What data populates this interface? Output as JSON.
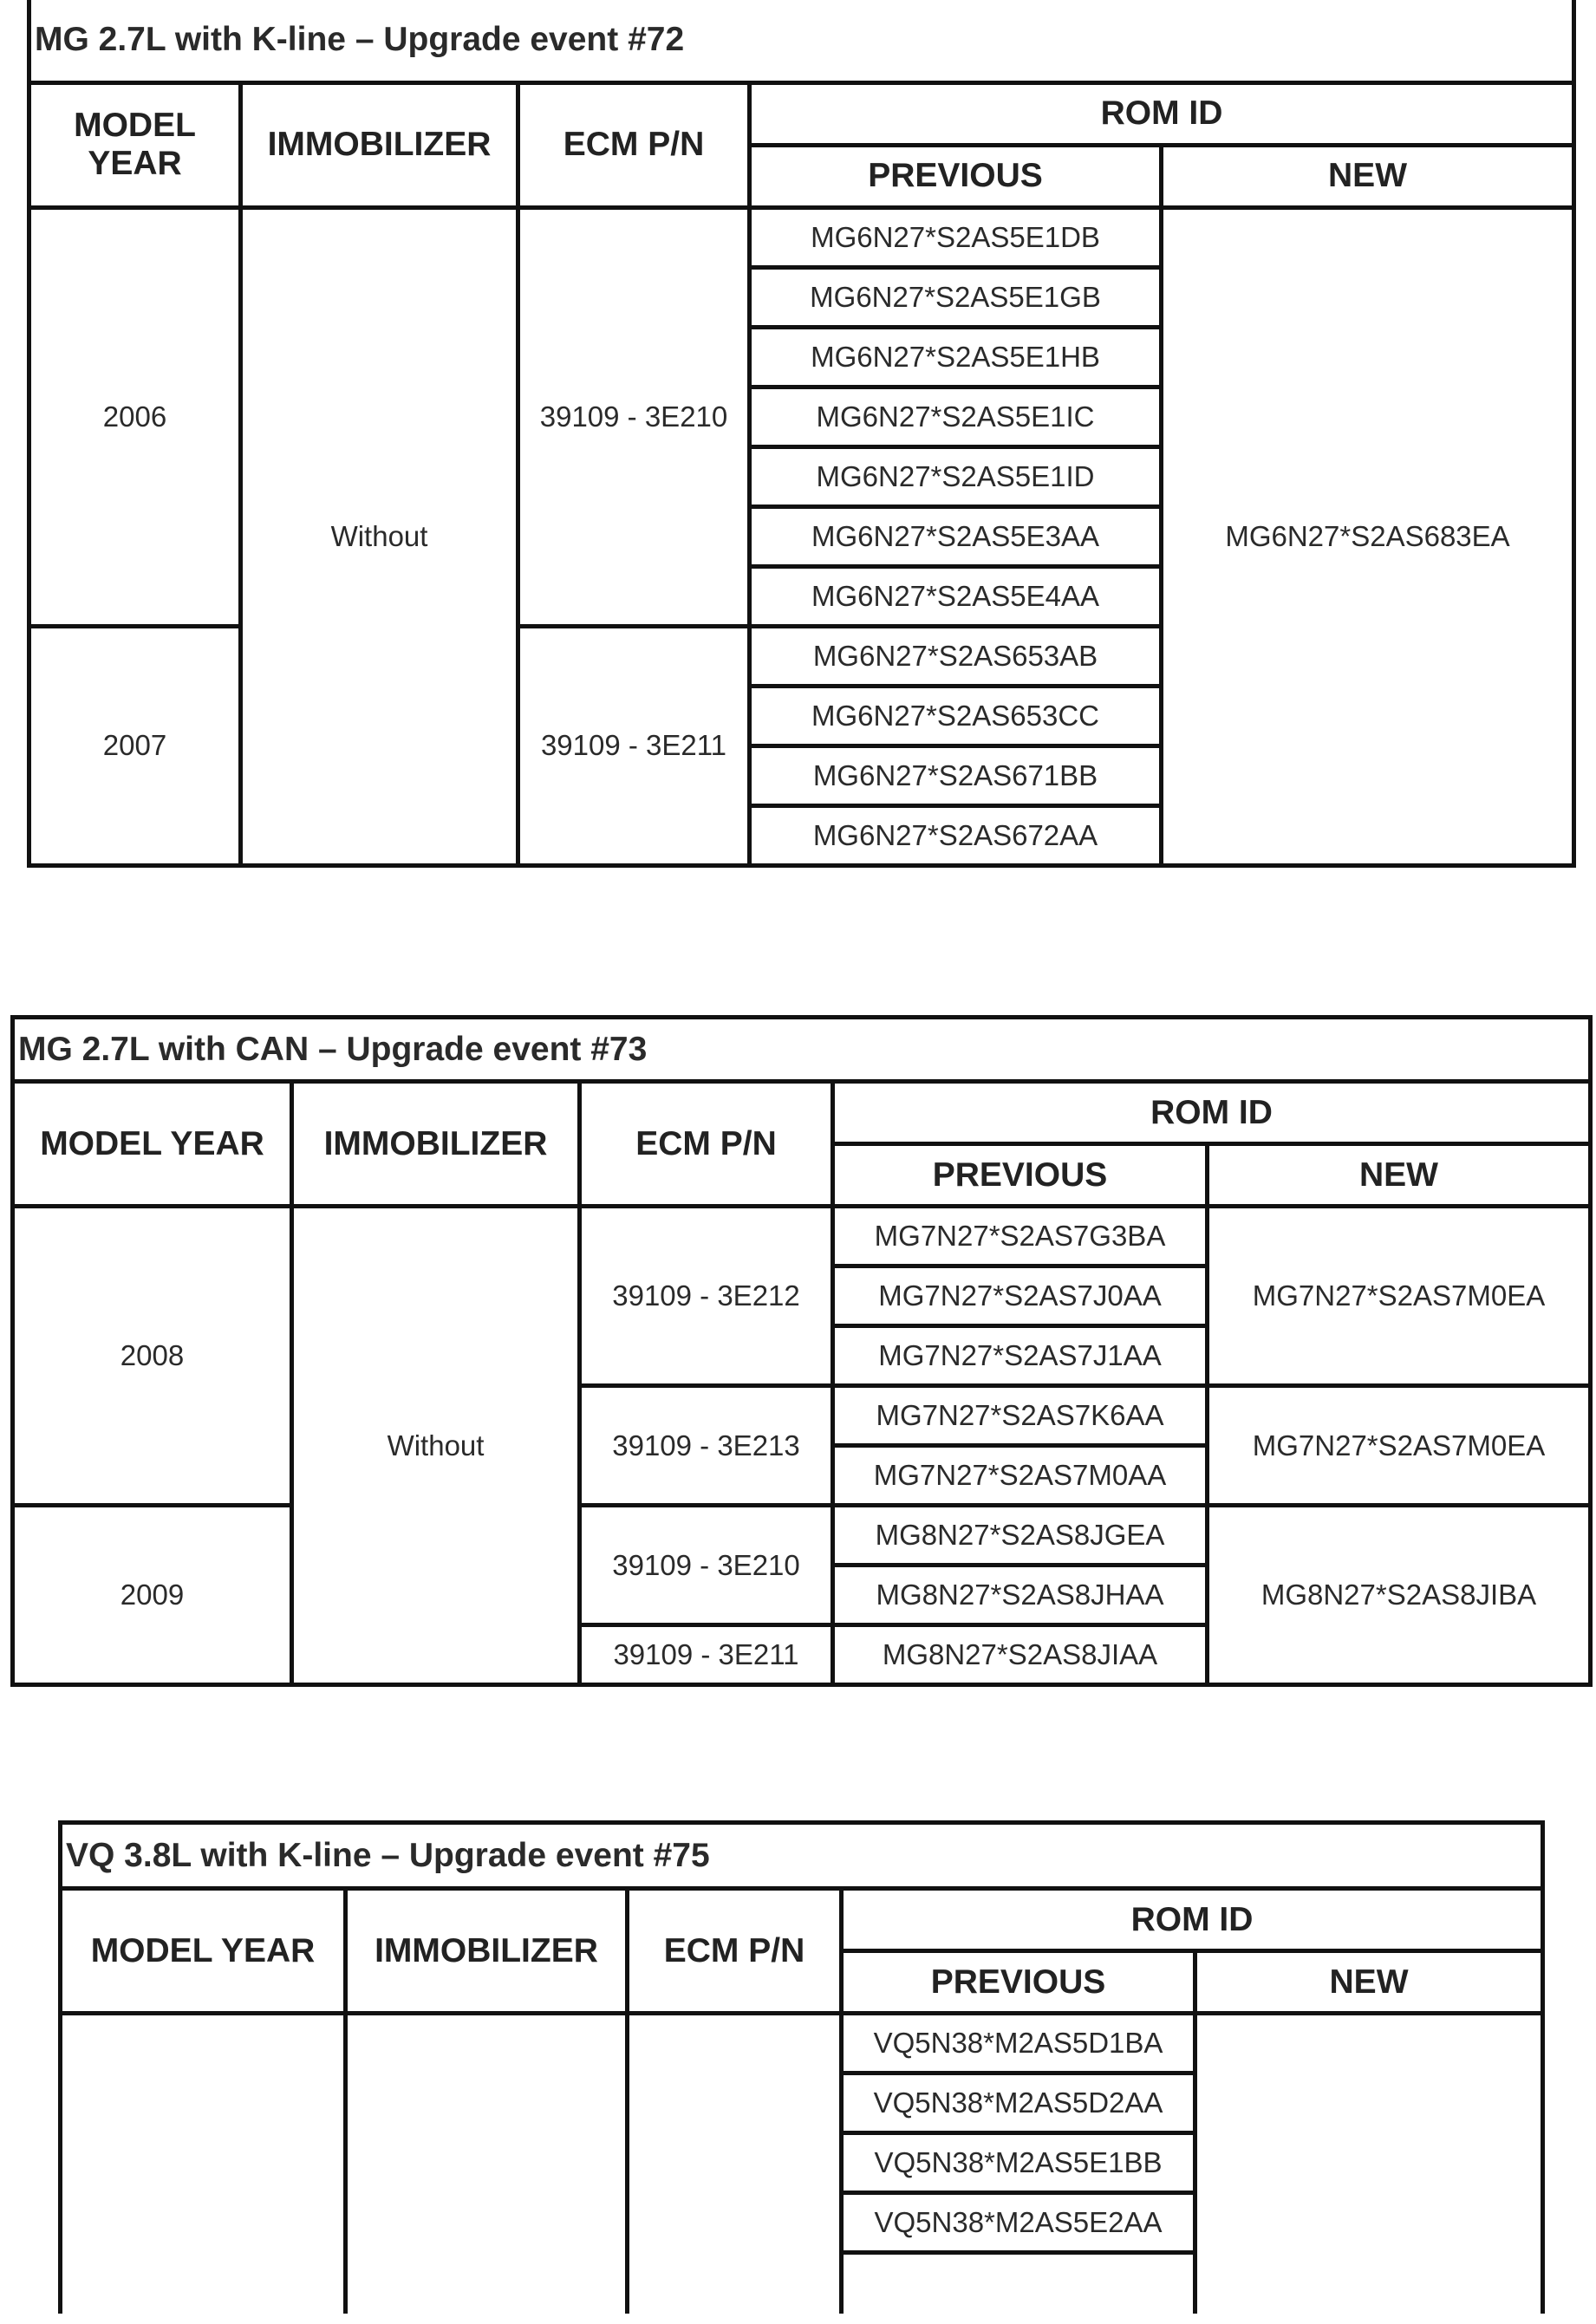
{
  "tables": [
    {
      "title": "MG 2.7L with K-line – Upgrade event #72",
      "headers": {
        "model_year": "MODEL YEAR",
        "immobilizer": "IMMOBILIZER",
        "ecm_pn": "ECM P/N",
        "rom_id": "ROM ID",
        "previous": "PREVIOUS",
        "new": "NEW"
      },
      "years": [
        "2006",
        "2007"
      ],
      "immobilizer": "Without",
      "ecm": [
        "39109 - 3E210",
        "39109 - 3E211"
      ],
      "previous": [
        "MG6N27*S2AS5E1DB",
        "MG6N27*S2AS5E1GB",
        "MG6N27*S2AS5E1HB",
        "MG6N27*S2AS5E1IC",
        "MG6N27*S2AS5E1ID",
        "MG6N27*S2AS5E3AA",
        "MG6N27*S2AS5E4AA",
        "MG6N27*S2AS653AB",
        "MG6N27*S2AS653CC",
        "MG6N27*S2AS671BB",
        "MG6N27*S2AS672AA"
      ],
      "new": [
        "MG6N27*S2AS683EA"
      ]
    },
    {
      "title": "MG 2.7L with CAN – Upgrade event #73",
      "headers": {
        "model_year": "MODEL YEAR",
        "immobilizer": "IMMOBILIZER",
        "ecm_pn": "ECM P/N",
        "rom_id": "ROM ID",
        "previous": "PREVIOUS",
        "new": "NEW"
      },
      "years": [
        "2008",
        "2009"
      ],
      "immobilizer": "Without",
      "ecm": [
        "39109 - 3E212",
        "39109 - 3E213",
        "39109 - 3E210",
        "39109 - 3E211"
      ],
      "previous": [
        "MG7N27*S2AS7G3BA",
        "MG7N27*S2AS7J0AA",
        "MG7N27*S2AS7J1AA",
        "MG7N27*S2AS7K6AA",
        "MG7N27*S2AS7M0AA",
        "MG8N27*S2AS8JGEA",
        "MG8N27*S2AS8JHAA",
        "MG8N27*S2AS8JIAA"
      ],
      "new": [
        "MG7N27*S2AS7M0EA",
        "MG7N27*S2AS7M0EA",
        "MG8N27*S2AS8JIBA"
      ]
    },
    {
      "title": "VQ 3.8L with K-line – Upgrade event #75",
      "headers": {
        "model_year": "MODEL YEAR",
        "immobilizer": "IMMOBILIZER",
        "ecm_pn": "ECM P/N",
        "rom_id": "ROM ID",
        "previous": "PREVIOUS",
        "new": "NEW"
      },
      "previous": [
        "VQ5N38*M2AS5D1BA",
        "VQ5N38*M2AS5D2AA",
        "VQ5N38*M2AS5E1BB",
        "VQ5N38*M2AS5E2AA"
      ]
    }
  ]
}
